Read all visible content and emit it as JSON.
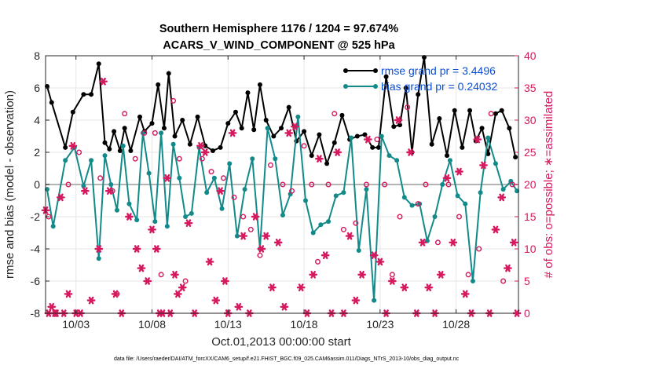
{
  "chart_data": {
    "type": "line",
    "title": "Southern Hemisphere 1176 / 1204 = 97.674%",
    "subtitle": "ACARS_V_WIND_COMPONENT @ 525 hPa",
    "xlabel": "Oct.01,2013 00:00:00 start",
    "ylabel": "rmse and bias (model - observation)",
    "ylabel_right": "# of obs: o=possible; ∗=assimilated",
    "xlim": [
      1,
      32.1
    ],
    "ylim": [
      -8,
      8
    ],
    "ylim_right": [
      0,
      40
    ],
    "x_ticks": [
      3,
      8,
      13,
      18,
      23,
      28
    ],
    "x_tick_labels": [
      "10/03",
      "10/08",
      "10/13",
      "10/18",
      "10/23",
      "10/28"
    ],
    "y_ticks": [
      -8,
      -6,
      -4,
      -2,
      0,
      2,
      4,
      6,
      8
    ],
    "y_ticks_right": [
      0,
      5,
      10,
      15,
      20,
      25,
      30,
      35,
      40
    ],
    "grid": true,
    "legend_position": "top-right",
    "legend": [
      "rmse grand pr = 3.4496",
      "bias grand pr = 0.24032"
    ],
    "colors": {
      "rmse": "#000000",
      "bias": "#138a8a",
      "obs": "#d6185e",
      "zero_line": "#b4b4b4"
    },
    "series": [
      {
        "name": "rmse",
        "x": [
          1.1,
          1.4,
          2.3,
          2.8,
          3.5,
          4,
          4.5,
          4.9,
          5.2,
          5.5,
          5.9,
          6.2,
          6.6,
          7.2,
          7.5,
          8,
          8.4,
          8.8,
          9.1,
          9.5,
          10,
          10.5,
          11,
          11.5,
          12,
          12.5,
          13,
          13.5,
          13.9,
          14.3,
          14.7,
          15.1,
          15.5,
          16,
          16.5,
          17,
          17.5,
          18,
          18.5,
          19,
          19.5,
          20,
          20.5,
          21,
          21.5,
          22,
          22.5,
          22.9,
          23.4,
          23.9,
          24.3,
          24.7,
          25.1,
          25.5,
          25.9,
          26.4,
          26.9,
          27.4,
          27.9,
          28.4,
          28.9,
          29.3,
          29.7,
          30.1,
          30.6,
          31,
          31.5,
          31.9
        ],
        "values": [
          6.1,
          5.1,
          2.3,
          4.5,
          5.6,
          5.6,
          7.5,
          2.6,
          2.2,
          3.3,
          2.1,
          3.5,
          2.1,
          4.2,
          3.3,
          3.8,
          6.2,
          3.5,
          6.9,
          3.0,
          4.0,
          2.5,
          4.2,
          2.4,
          2.1,
          2.3,
          3.8,
          4.5,
          3.5,
          5.7,
          3.4,
          6.2,
          4.0,
          3.0,
          3.5,
          4.8,
          2.7,
          3.3,
          1.8,
          3.1,
          1.3,
          2.6,
          4.3,
          2.8,
          3.0,
          3.1,
          2.3,
          2.3,
          6.7,
          3.6,
          3.7,
          6.0,
          2.0,
          5.6,
          7.9,
          2.5,
          4.1,
          1.8,
          4.6,
          2.3,
          4.6,
          2.7,
          3.5,
          1.9,
          4.4,
          4.6,
          3.5,
          1.7
        ]
      },
      {
        "name": "bias",
        "x": [
          1.1,
          1.5,
          2.3,
          2.9,
          3.5,
          4,
          4.5,
          4.9,
          5.3,
          5.7,
          6.1,
          6.5,
          7,
          7.4,
          7.8,
          8.2,
          8.6,
          9,
          9.4,
          9.8,
          10.2,
          10.6,
          11.1,
          11.6,
          12.1,
          12.6,
          13.1,
          13.6,
          14.1,
          14.6,
          15.1,
          15.6,
          16.1,
          16.6,
          17.1,
          17.6,
          18.1,
          18.6,
          19.1,
          19.6,
          20.1,
          20.6,
          21.1,
          21.6,
          22.1,
          22.6,
          23.1,
          23.6,
          24.1,
          24.6,
          25.1,
          25.6,
          26.1,
          26.6,
          27.1,
          27.6,
          28.1,
          28.6,
          29.1,
          29.6,
          30.1,
          30.6,
          31.1,
          31.6,
          32
        ],
        "values": [
          -0.3,
          -2.6,
          1.5,
          2.3,
          -0.1,
          1.5,
          -4.6,
          1.8,
          0.0,
          -1.6,
          2.4,
          -1.2,
          -2.2,
          3.2,
          0.7,
          -2.3,
          3.2,
          -2.6,
          2.5,
          0.4,
          -2.0,
          -1.8,
          2.3,
          -0.5,
          0.4,
          -1.5,
          1.3,
          -3.2,
          -0.3,
          1.6,
          -4.0,
          3.5,
          1.6,
          -1.9,
          -0.6,
          4.2,
          -1.0,
          -3.0,
          -2.5,
          -2.3,
          -0.7,
          -0.5,
          2.9,
          -4.1,
          -0.3,
          -7.2,
          3.0,
          1.8,
          1.5,
          -0.8,
          -1.3,
          -1.2,
          -3.5,
          -2.0,
          0.0,
          1.5,
          -0.7,
          -1.2,
          -6.0,
          -0.5,
          2.9,
          1.3,
          -0.3,
          0.2,
          -0.4
        ]
      },
      {
        "name": "obs_assimilated",
        "x": [
          1,
          1.2,
          1.4,
          1.6,
          1.7,
          2,
          2.2,
          2.5,
          2.8,
          3,
          3.3,
          3.6,
          4,
          4.5,
          4.8,
          5.2,
          5.6,
          6,
          6.5,
          7,
          7.3,
          7.7,
          8,
          8.3,
          8.5,
          8.7,
          9,
          9.2,
          9.5,
          9.7,
          10,
          10.4,
          10.8,
          11.2,
          11.5,
          11.8,
          12.2,
          12.5,
          12.8,
          13,
          13.3,
          13.7,
          14,
          14.4,
          14.8,
          15.2,
          15.5,
          15.9,
          16.3,
          16.7,
          17,
          17.4,
          17.8,
          18.2,
          18.6,
          19,
          19.4,
          19.8,
          20.2,
          20.6,
          21,
          21.4,
          21.8,
          22.2,
          22.6,
          23,
          23.4,
          23.8,
          24.2,
          24.6,
          25,
          25.4,
          25.8,
          26.2,
          26.6,
          27,
          27.4,
          27.8,
          28.2,
          28.6,
          29,
          29.4,
          29.8,
          30.2,
          30.6,
          31,
          31.4,
          31.8,
          32
        ],
        "values": [
          16,
          0,
          1,
          0,
          0,
          18,
          0,
          3,
          26,
          0,
          0,
          19,
          2,
          10,
          36,
          19,
          3,
          0,
          15,
          10,
          7,
          5,
          13,
          10,
          0,
          0,
          21,
          0,
          6,
          3,
          4,
          14,
          0,
          26,
          25,
          8,
          2,
          19,
          5,
          0,
          28,
          1,
          12,
          0,
          15,
          10,
          12,
          4,
          11,
          1,
          28,
          29,
          4,
          0,
          6,
          24,
          9,
          0,
          25,
          0,
          12,
          2,
          6,
          27,
          9,
          8,
          0,
          5,
          30,
          4,
          25,
          0,
          11,
          4,
          0,
          6,
          21,
          11,
          22,
          3,
          0,
          27,
          23,
          0,
          13,
          18,
          7,
          11,
          0
        ]
      },
      {
        "name": "obs_possible",
        "x": [
          1.2,
          2.5,
          3.2,
          4.6,
          5.4,
          5.7,
          6.2,
          6.9,
          7.5,
          8.2,
          8.6,
          9.4,
          9.8,
          10.2,
          11.3,
          11.9,
          12.7,
          13.4,
          14,
          14.5,
          15.1,
          15.8,
          16.6,
          17.2,
          18,
          18.5,
          18.9,
          19.6,
          20,
          20.6,
          21.4,
          22.1,
          22.8,
          23.3,
          23.8,
          24.3,
          24.8,
          25.5,
          26,
          26.8,
          27.5,
          28.2,
          28.8,
          29.5,
          30.3,
          31.1,
          31.7
        ],
        "values": [
          15,
          20,
          25,
          21,
          19,
          3,
          31,
          24,
          28,
          28,
          6,
          33,
          24,
          5,
          24,
          22,
          21,
          18,
          15,
          13,
          9,
          23,
          20,
          19,
          26,
          20,
          8,
          20,
          31,
          13,
          14,
          20,
          27,
          20,
          6,
          15,
          32,
          17,
          20,
          11,
          20,
          15,
          6,
          10,
          31,
          5,
          20
        ]
      }
    ]
  },
  "footer": "data file: /Users/raeder/DAI/ATM_forcXX/CAM6_setup/f.e21.FHIST_BGC.f09_025.CAM6assim.011/Diags_NTrS_2013-10/obs_diag_output.nc"
}
